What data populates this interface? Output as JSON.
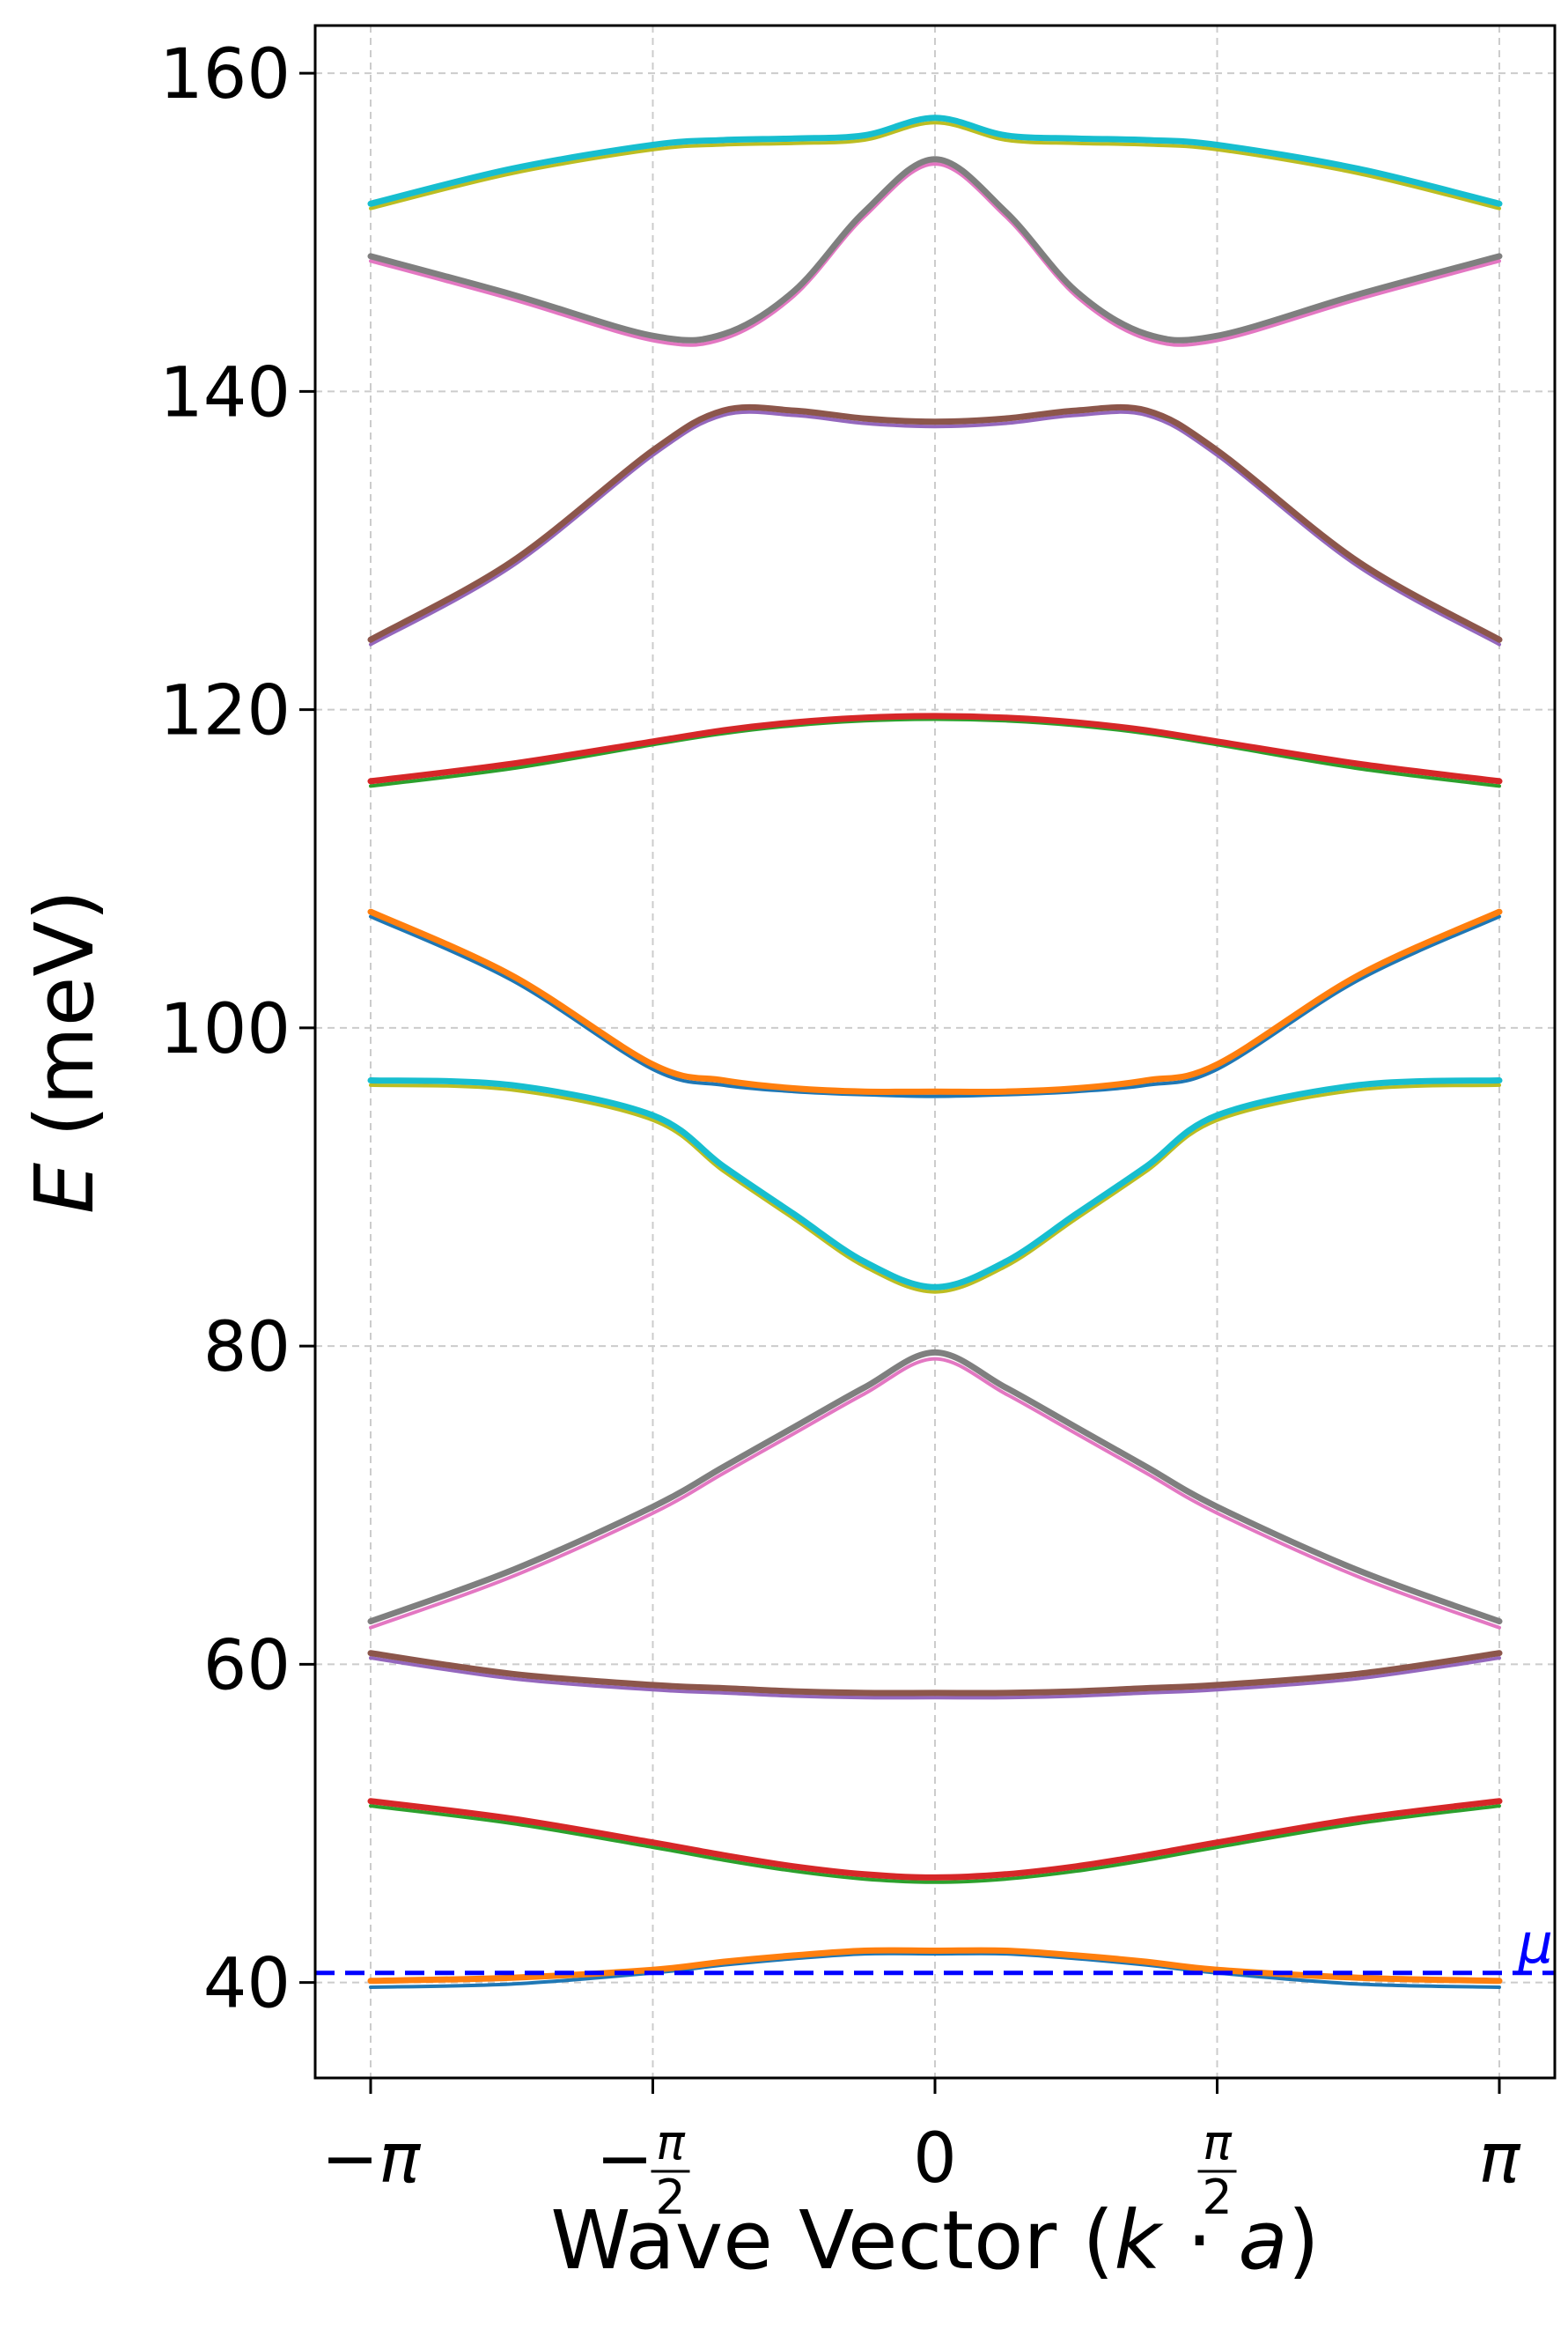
{
  "chart_data": {
    "type": "line",
    "xlabel": "Wave Vector (k · a)",
    "ylabel": "E (meV)",
    "xlim": [
      -3.14159,
      3.14159
    ],
    "ylim": [
      34,
      163
    ],
    "grid": true,
    "y_ticks": [
      40,
      60,
      80,
      100,
      120,
      140,
      160
    ],
    "x_ticks": [
      {
        "value": -3.14159,
        "label": "-π"
      },
      {
        "value": -1.5708,
        "label": "-π/2"
      },
      {
        "value": 0,
        "label": "0"
      },
      {
        "value": 1.5708,
        "label": "π/2"
      },
      {
        "value": 3.14159,
        "label": "π"
      }
    ],
    "x": [
      -3.1416,
      -2.3562,
      -1.5708,
      -1.1781,
      -0.7854,
      -0.3927,
      0,
      0.3927,
      0.7854,
      1.1781,
      1.5708,
      2.3562,
      3.1416
    ],
    "series": [
      {
        "color": "#1f77b4",
        "width": 4,
        "values": [
          39.7,
          39.9,
          40.6,
          41.1,
          41.5,
          41.8,
          41.8,
          41.8,
          41.5,
          41.1,
          40.6,
          39.9,
          39.7
        ]
      },
      {
        "color": "#ff7f0e",
        "width": 7,
        "values": [
          40.1,
          40.3,
          40.8,
          41.3,
          41.7,
          42.0,
          42.0,
          42.0,
          41.7,
          41.3,
          40.8,
          40.3,
          40.1
        ]
      },
      {
        "color": "#2ca02c",
        "width": 4,
        "values": [
          51.1,
          50.0,
          48.5,
          47.7,
          47.0,
          46.5,
          46.3,
          46.5,
          47.0,
          47.7,
          48.5,
          50.0,
          51.1
        ]
      },
      {
        "color": "#d62728",
        "width": 7,
        "values": [
          51.4,
          50.3,
          48.8,
          48.0,
          47.3,
          46.8,
          46.6,
          46.8,
          47.3,
          48.0,
          48.8,
          50.3,
          51.4
        ]
      },
      {
        "color": "#9467bd",
        "width": 4,
        "values": [
          60.4,
          59.1,
          58.4,
          58.2,
          58.0,
          57.9,
          57.9,
          57.9,
          58.0,
          58.2,
          58.4,
          59.1,
          60.4
        ]
      },
      {
        "color": "#8c564b",
        "width": 7,
        "values": [
          60.7,
          59.4,
          58.7,
          58.5,
          58.3,
          58.2,
          58.2,
          58.2,
          58.3,
          58.5,
          58.7,
          59.4,
          60.7
        ]
      },
      {
        "color": "#e377c2",
        "width": 4,
        "values": [
          62.3,
          65.5,
          69.5,
          72.0,
          74.5,
          77.0,
          79.2,
          77.0,
          74.5,
          72.0,
          69.5,
          65.5,
          62.3
        ]
      },
      {
        "color": "#7f7f7f",
        "width": 7,
        "values": [
          62.7,
          65.9,
          69.9,
          72.4,
          74.9,
          77.4,
          79.6,
          77.4,
          74.9,
          72.4,
          69.9,
          65.9,
          62.7
        ]
      },
      {
        "color": "#bcbd22",
        "width": 4,
        "values": [
          96.4,
          96.1,
          94.2,
          91.0,
          88.0,
          85.0,
          83.4,
          85.0,
          88.0,
          91.0,
          94.2,
          96.1,
          96.4
        ]
      },
      {
        "color": "#17becf",
        "width": 7,
        "values": [
          96.7,
          96.4,
          94.5,
          91.3,
          88.3,
          85.3,
          83.7,
          85.3,
          88.3,
          91.3,
          94.5,
          96.4,
          96.7
        ]
      },
      {
        "color": "#1f77b4",
        "width": 4,
        "values": [
          107.0,
          103.0,
          97.4,
          96.4,
          96.0,
          95.8,
          95.7,
          95.8,
          96.0,
          96.4,
          97.4,
          103.0,
          107.0
        ]
      },
      {
        "color": "#ff7f0e",
        "width": 7,
        "values": [
          107.3,
          103.3,
          97.7,
          96.7,
          96.2,
          96.0,
          96.0,
          96.0,
          96.2,
          96.7,
          97.7,
          103.3,
          107.3
        ]
      },
      {
        "color": "#2ca02c",
        "width": 4,
        "values": [
          115.2,
          116.3,
          117.8,
          118.5,
          119.0,
          119.3,
          119.4,
          119.3,
          119.0,
          118.5,
          117.8,
          116.3,
          115.2
        ]
      },
      {
        "color": "#d62728",
        "width": 7,
        "values": [
          115.5,
          116.6,
          118.0,
          118.7,
          119.2,
          119.5,
          119.6,
          119.5,
          119.2,
          118.7,
          118.0,
          116.6,
          115.5
        ]
      },
      {
        "color": "#9467bd",
        "width": 4,
        "values": [
          124.1,
          129.0,
          136.0,
          138.5,
          138.5,
          138.0,
          137.8,
          138.0,
          138.5,
          138.5,
          136.0,
          129.0,
          124.1
        ]
      },
      {
        "color": "#8c564b",
        "width": 7,
        "values": [
          124.4,
          129.3,
          136.3,
          138.8,
          138.8,
          138.3,
          138.1,
          138.3,
          138.8,
          138.8,
          136.3,
          129.3,
          124.4
        ]
      },
      {
        "color": "#e377c2",
        "width": 4,
        "values": [
          148.2,
          145.8,
          143.2,
          143.3,
          146.0,
          151.0,
          154.3,
          151.0,
          146.0,
          143.3,
          143.2,
          145.8,
          148.2
        ]
      },
      {
        "color": "#7f7f7f",
        "width": 7,
        "values": [
          148.5,
          146.1,
          143.5,
          143.6,
          146.3,
          151.3,
          154.6,
          151.3,
          146.3,
          143.6,
          143.5,
          146.1,
          148.5
        ]
      },
      {
        "color": "#bcbd22",
        "width": 4,
        "values": [
          151.5,
          153.7,
          155.2,
          155.5,
          155.6,
          155.8,
          156.9,
          155.8,
          155.6,
          155.5,
          155.2,
          153.7,
          151.5
        ]
      },
      {
        "color": "#17becf",
        "width": 7,
        "values": [
          151.8,
          154.0,
          155.5,
          155.8,
          155.9,
          156.1,
          157.2,
          156.1,
          155.9,
          155.8,
          155.5,
          154.0,
          151.8
        ]
      }
    ],
    "reference_line": {
      "label": "μ",
      "y": 40.6,
      "color": "#0000ff",
      "style": "dashed"
    }
  }
}
